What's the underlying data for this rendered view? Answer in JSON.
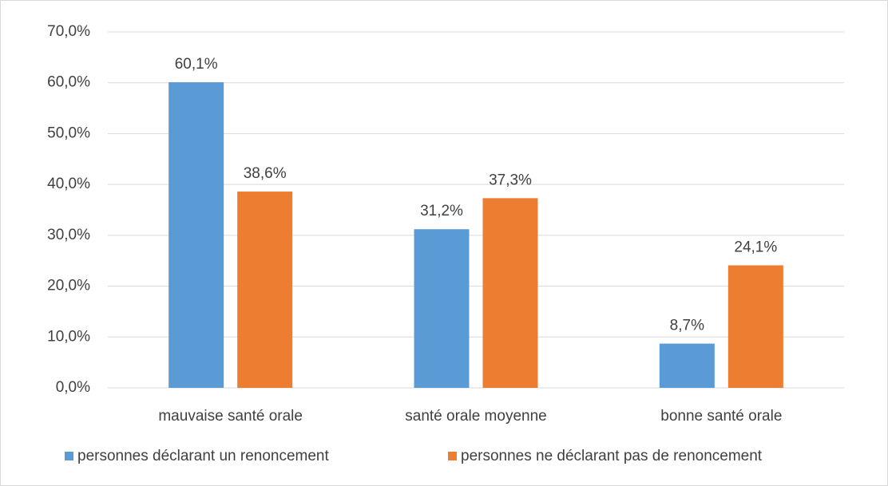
{
  "chart_data": {
    "type": "bar",
    "categories": [
      "mauvaise santé orale",
      "santé orale moyenne",
      "bonne santé orale"
    ],
    "series": [
      {
        "name": "personnes déclarant un renoncement",
        "color": "#5b9bd5",
        "values": [
          60.1,
          31.2,
          8.7
        ],
        "value_labels": [
          "60,1%",
          "31,2%",
          "8,7%"
        ]
      },
      {
        "name": "personnes ne déclarant pas de renoncement",
        "color": "#ed7d31",
        "values": [
          38.6,
          37.3,
          24.1
        ],
        "value_labels": [
          "38,6%",
          "37,3%",
          "24,1%"
        ]
      }
    ],
    "ylim": [
      0,
      70
    ],
    "yticks": [
      {
        "value": 0,
        "label": "0,0%"
      },
      {
        "value": 10,
        "label": "10,0%"
      },
      {
        "value": 20,
        "label": "20,0%"
      },
      {
        "value": 30,
        "label": "30,0%"
      },
      {
        "value": 40,
        "label": "40,0%"
      },
      {
        "value": 50,
        "label": "50,0%"
      },
      {
        "value": 60,
        "label": "60,0%"
      },
      {
        "value": 70,
        "label": "70,0%"
      }
    ],
    "grid": true,
    "legend": "bottom"
  }
}
